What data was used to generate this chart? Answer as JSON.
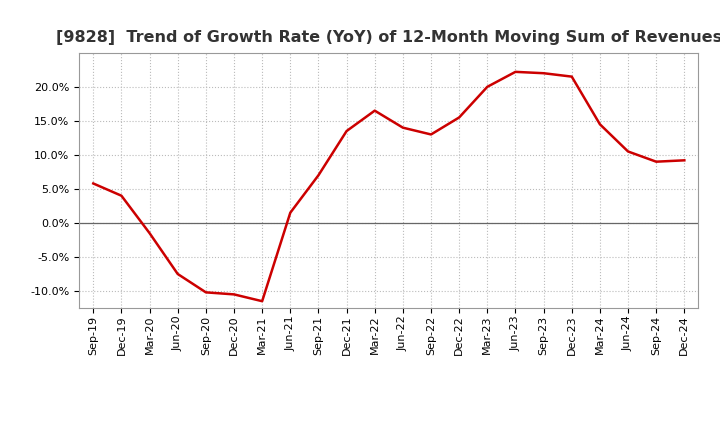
{
  "title": "[9828]  Trend of Growth Rate (YoY) of 12-Month Moving Sum of Revenues",
  "x_labels": [
    "Sep-19",
    "Dec-19",
    "Mar-20",
    "Jun-20",
    "Sep-20",
    "Dec-20",
    "Mar-21",
    "Jun-21",
    "Sep-21",
    "Dec-21",
    "Mar-22",
    "Jun-22",
    "Sep-22",
    "Dec-22",
    "Mar-23",
    "Jun-23",
    "Sep-23",
    "Dec-23",
    "Mar-24",
    "Jun-24",
    "Sep-24",
    "Dec-24"
  ],
  "y_values": [
    5.8,
    4.0,
    -1.5,
    -7.5,
    -10.2,
    -10.5,
    -11.5,
    1.5,
    7.0,
    13.5,
    16.5,
    14.0,
    13.0,
    15.5,
    20.0,
    22.2,
    22.0,
    21.5,
    14.5,
    10.5,
    9.0,
    9.2
  ],
  "line_color": "#cc0000",
  "line_width": 1.8,
  "ylim": [
    -12.5,
    25.0
  ],
  "yticks": [
    -10.0,
    -5.0,
    0.0,
    5.0,
    10.0,
    15.0,
    20.0
  ],
  "background_color": "#ffffff",
  "grid_color": "#bbbbbb",
  "zero_line_color": "#666666",
  "title_fontsize": 11.5,
  "tick_fontsize": 8.0
}
